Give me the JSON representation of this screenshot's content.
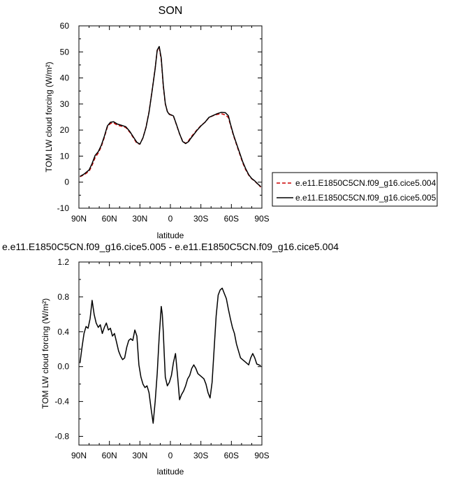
{
  "chart_data": [
    {
      "type": "line",
      "title": "SON",
      "xlabel": "latitude",
      "ylabel": "TOM LW cloud forcing (W/m²)",
      "xlim": [
        90,
        -90
      ],
      "ylim": [
        -10,
        60
      ],
      "x_ticks": [
        90,
        60,
        30,
        0,
        -30,
        -60,
        -90
      ],
      "x_tick_labels": [
        "90N",
        "60N",
        "30N",
        "0",
        "30S",
        "60S",
        "90S"
      ],
      "y_ticks": [
        -10,
        0,
        10,
        20,
        30,
        40,
        50,
        60
      ],
      "y_tick_labels": [
        "-10",
        "0",
        "10",
        "20",
        "30",
        "40",
        "50",
        "60"
      ],
      "grid": false,
      "legend_position": "right",
      "series": [
        {
          "name": "e.e11.E1850C5CN.f09_g16.cice5.004",
          "color": "#cc0000",
          "dash": "dashed",
          "x": [
            89,
            85,
            80,
            77,
            74,
            71,
            68,
            65,
            62,
            59,
            56,
            52,
            48,
            44,
            40,
            36,
            33,
            30,
            27,
            24,
            21,
            18,
            15,
            13,
            11,
            9,
            7,
            5,
            3,
            1,
            -1,
            -3,
            -6,
            -9,
            -12,
            -15,
            -18,
            -20,
            -23,
            -26,
            -30,
            -34,
            -38,
            -42,
            -46,
            -50,
            -54,
            -57,
            -59,
            -62,
            -65,
            -68,
            -71,
            -74,
            -77,
            -80,
            -83,
            -86,
            -89
          ],
          "y": [
            2.1,
            2.8,
            4.2,
            6.5,
            9.5,
            11.2,
            13.6,
            17.2,
            21.2,
            22.5,
            22.8,
            21.8,
            21.5,
            21.0,
            19.2,
            16.8,
            14.9,
            14.6,
            17.0,
            21.2,
            27.0,
            35.2,
            43.8,
            50.5,
            51.6,
            47.0,
            36.8,
            30.0,
            27.2,
            26.2,
            25.6,
            25.3,
            22.0,
            18.5,
            15.8,
            14.9,
            16.0,
            17.2,
            18.6,
            20.0,
            21.7,
            23.0,
            24.8,
            25.5,
            26.0,
            26.3,
            25.8,
            24.8,
            22.0,
            18.0,
            14.5,
            11.0,
            7.6,
            4.8,
            2.7,
            1.3,
            0.4,
            -0.8,
            -1.9
          ]
        },
        {
          "name": "e.e11.E1850C5CN.f09_g16.cice5.005",
          "color": "#000000",
          "dash": "solid",
          "x": [
            89,
            85,
            80,
            77,
            74,
            71,
            68,
            65,
            62,
            59,
            56,
            52,
            48,
            44,
            40,
            36,
            33,
            30,
            27,
            24,
            21,
            18,
            15,
            13,
            11,
            9,
            7,
            5,
            3,
            1,
            -1,
            -3,
            -6,
            -9,
            -12,
            -15,
            -18,
            -20,
            -23,
            -26,
            -30,
            -34,
            -38,
            -42,
            -46,
            -50,
            -54,
            -57,
            -59,
            -62,
            -65,
            -68,
            -71,
            -74,
            -77,
            -80,
            -83,
            -86,
            -89
          ],
          "y": [
            2.2,
            3.1,
            4.7,
            7.2,
            10.3,
            11.7,
            14.1,
            17.6,
            21.6,
            23.0,
            23.2,
            22.3,
            21.8,
            21.3,
            19.5,
            17.1,
            15.3,
            14.6,
            17.0,
            21.0,
            26.8,
            35.0,
            43.6,
            50.7,
            52.1,
            47.6,
            37.3,
            30.2,
            27.1,
            26.0,
            25.8,
            25.4,
            22.1,
            18.6,
            15.6,
            14.8,
            15.6,
            16.8,
            18.3,
            19.8,
            21.6,
            23.0,
            24.9,
            25.6,
            26.3,
            26.8,
            26.7,
            25.5,
            22.4,
            18.3,
            14.8,
            11.4,
            8.0,
            5.2,
            2.9,
            1.4,
            0.5,
            -0.7,
            -1.7
          ]
        }
      ]
    },
    {
      "type": "line",
      "title": "e.e11.E1850C5CN.f09_g16.cice5.005 - e.e11.E1850C5CN.f09_g16.cice5.004",
      "xlabel": "latitude",
      "ylabel": "TOM LW cloud forcing (W/m²)",
      "xlim": [
        90,
        -90
      ],
      "ylim": [
        -0.9,
        1.2
      ],
      "x_ticks": [
        90,
        60,
        30,
        0,
        -30,
        -60,
        -90
      ],
      "x_tick_labels": [
        "90N",
        "60N",
        "30N",
        "0",
        "30S",
        "60S",
        "90S"
      ],
      "y_ticks": [
        -0.8,
        -0.4,
        0.0,
        0.4,
        0.8,
        1.2
      ],
      "y_tick_labels": [
        "-0.8",
        "-0.4",
        "0.0",
        "0.4",
        "0.8",
        "1.2"
      ],
      "grid": false,
      "series": [
        {
          "color": "#000000",
          "dash": "solid",
          "x": [
            89,
            87,
            85,
            83,
            81,
            79,
            77,
            75,
            73,
            71,
            69,
            67,
            65,
            63,
            61,
            59,
            57,
            55,
            53,
            51,
            49,
            47,
            45,
            43,
            41,
            39,
            37,
            35,
            33,
            31,
            29,
            27,
            25,
            23,
            21,
            19,
            17,
            15,
            13,
            11,
            9,
            8,
            7,
            6,
            5,
            3,
            1,
            -1,
            -3,
            -5,
            -7,
            -9,
            -11,
            -13,
            -15,
            -17,
            -19,
            -21,
            -23,
            -25,
            -27,
            -29,
            -31,
            -33,
            -35,
            -37,
            -39,
            -41,
            -43,
            -45,
            -47,
            -49,
            -51,
            -53,
            -55,
            -57,
            -59,
            -61,
            -63,
            -65,
            -67,
            -69,
            -71,
            -73,
            -75,
            -77,
            -79,
            -81,
            -83,
            -85,
            -87,
            -89
          ],
          "y": [
            0.04,
            0.22,
            0.38,
            0.46,
            0.44,
            0.55,
            0.76,
            0.6,
            0.5,
            0.45,
            0.48,
            0.38,
            0.45,
            0.5,
            0.42,
            0.44,
            0.35,
            0.38,
            0.28,
            0.18,
            0.12,
            0.08,
            0.1,
            0.22,
            0.3,
            0.32,
            0.3,
            0.42,
            0.35,
            0.02,
            -0.12,
            -0.2,
            -0.24,
            -0.22,
            -0.3,
            -0.48,
            -0.65,
            -0.4,
            -0.08,
            0.35,
            0.69,
            0.6,
            0.4,
            0.12,
            -0.12,
            -0.22,
            -0.18,
            -0.1,
            0.05,
            0.15,
            -0.1,
            -0.38,
            -0.32,
            -0.28,
            -0.22,
            -0.14,
            -0.1,
            -0.02,
            0.02,
            -0.02,
            -0.08,
            -0.1,
            -0.12,
            -0.14,
            -0.2,
            -0.3,
            -0.36,
            -0.18,
            0.2,
            0.58,
            0.82,
            0.88,
            0.9,
            0.84,
            0.78,
            0.66,
            0.55,
            0.45,
            0.38,
            0.26,
            0.18,
            0.1,
            0.08,
            0.06,
            0.04,
            0.02,
            0.1,
            0.15,
            0.1,
            0.03,
            0.02,
            0.01
          ]
        }
      ]
    }
  ]
}
